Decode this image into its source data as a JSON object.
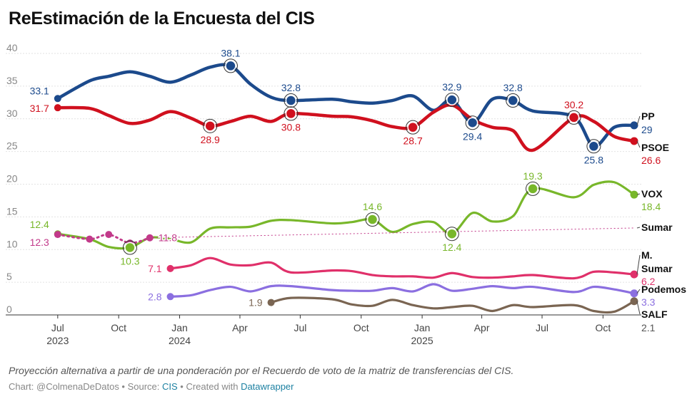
{
  "title": "ReEstimación de la Encuesta del CIS",
  "note": "Proyección alternativa a partir de una ponderación por el Recuerdo de voto de la matriz de transferencias del CIS.",
  "footer": {
    "credit_prefix": "Chart: @ColmenaDeDatos • Source: ",
    "source": "CIS",
    "created_prefix": " • Created with ",
    "tool": "Datawrapper"
  },
  "chart_data": {
    "type": "line",
    "title": "ReEstimación de la Encuesta del CIS",
    "xlabel": "",
    "ylabel": "",
    "ylim": [
      0,
      40
    ],
    "yticks": [
      0,
      5,
      10,
      15,
      20,
      25,
      30,
      35,
      40
    ],
    "grid": true,
    "x_range": [
      "2023-06-01",
      "2025-12-01"
    ],
    "xticks": [
      {
        "date": "2023-07-15",
        "label": "Jul",
        "year": "2023"
      },
      {
        "date": "2023-10-15",
        "label": "Oct",
        "year": ""
      },
      {
        "date": "2024-01-15",
        "label": "Jan",
        "year": "2024"
      },
      {
        "date": "2024-04-15",
        "label": "Apr",
        "year": ""
      },
      {
        "date": "2024-07-15",
        "label": "Jul",
        "year": ""
      },
      {
        "date": "2024-10-15",
        "label": "Oct",
        "year": ""
      },
      {
        "date": "2025-01-15",
        "label": "Jan",
        "year": "2025"
      },
      {
        "date": "2025-04-15",
        "label": "Apr",
        "year": ""
      },
      {
        "date": "2025-07-15",
        "label": "Jul",
        "year": ""
      },
      {
        "date": "2025-10-15",
        "label": "Oct",
        "year": ""
      }
    ],
    "series": [
      {
        "name": "PP",
        "color": "#1c4a8c",
        "end_value": "29",
        "points": [
          [
            "2023-07-15",
            33.1
          ],
          [
            "2023-09-01",
            35.8
          ],
          [
            "2023-09-30",
            36.5
          ],
          [
            "2023-11-01",
            37.2
          ],
          [
            "2023-12-01",
            36.5
          ],
          [
            "2024-01-01",
            35.6
          ],
          [
            "2024-02-01",
            36.7
          ],
          [
            "2024-03-01",
            37.9
          ],
          [
            "2024-04-01",
            38.1
          ],
          [
            "2024-05-01",
            35.3
          ],
          [
            "2024-06-01",
            33.3
          ],
          [
            "2024-07-01",
            32.8
          ],
          [
            "2024-09-01",
            33.0
          ],
          [
            "2024-10-01",
            32.6
          ],
          [
            "2024-11-01",
            32.4
          ],
          [
            "2024-12-01",
            32.8
          ],
          [
            "2025-01-01",
            33.5
          ],
          [
            "2025-02-01",
            31.3
          ],
          [
            "2025-03-01",
            32.9
          ],
          [
            "2025-04-01",
            29.4
          ],
          [
            "2025-05-01",
            33.0
          ],
          [
            "2025-06-01",
            32.8
          ],
          [
            "2025-07-01",
            31.2
          ],
          [
            "2025-09-01",
            30.3
          ],
          [
            "2025-10-01",
            25.8
          ],
          [
            "2025-11-01",
            28.7
          ],
          [
            "2025-12-01",
            29.0
          ]
        ]
      },
      {
        "name": "PSOE",
        "color": "#d0101e",
        "end_value": "26.6",
        "points": [
          [
            "2023-07-15",
            31.7
          ],
          [
            "2023-09-01",
            31.6
          ],
          [
            "2023-09-30",
            30.5
          ],
          [
            "2023-11-01",
            29.3
          ],
          [
            "2023-12-01",
            29.8
          ],
          [
            "2024-01-01",
            31.1
          ],
          [
            "2024-02-01",
            30.1
          ],
          [
            "2024-03-01",
            28.9
          ],
          [
            "2024-04-01",
            29.6
          ],
          [
            "2024-05-01",
            30.4
          ],
          [
            "2024-06-01",
            29.6
          ],
          [
            "2024-07-01",
            30.8
          ],
          [
            "2024-09-01",
            30.4
          ],
          [
            "2024-10-01",
            30.3
          ],
          [
            "2024-11-01",
            29.7
          ],
          [
            "2024-12-01",
            28.8
          ],
          [
            "2025-01-01",
            28.7
          ],
          [
            "2025-02-01",
            31.0
          ],
          [
            "2025-03-01",
            32.1
          ],
          [
            "2025-04-01",
            29.9
          ],
          [
            "2025-05-01",
            28.7
          ],
          [
            "2025-06-01",
            28.2
          ],
          [
            "2025-07-01",
            25.2
          ],
          [
            "2025-09-01",
            30.2
          ],
          [
            "2025-10-01",
            29.6
          ],
          [
            "2025-11-01",
            27.3
          ],
          [
            "2025-12-01",
            26.6
          ]
        ]
      },
      {
        "name": "VOX",
        "color": "#78b72a",
        "end_value": "18.4",
        "points": [
          [
            "2023-07-15",
            12.4
          ],
          [
            "2023-09-01",
            11.6
          ],
          [
            "2023-09-30",
            10.4
          ],
          [
            "2023-11-01",
            10.3
          ],
          [
            "2023-12-01",
            11.8
          ],
          [
            "2024-01-01",
            11.6
          ],
          [
            "2024-02-01",
            11.1
          ],
          [
            "2024-03-01",
            13.2
          ],
          [
            "2024-04-01",
            13.4
          ],
          [
            "2024-05-01",
            13.5
          ],
          [
            "2024-06-01",
            14.4
          ],
          [
            "2024-07-01",
            14.5
          ],
          [
            "2024-09-01",
            14.0
          ],
          [
            "2024-10-01",
            14.2
          ],
          [
            "2024-11-01",
            14.6
          ],
          [
            "2024-12-01",
            12.7
          ],
          [
            "2025-01-01",
            13.9
          ],
          [
            "2025-02-01",
            14.2
          ],
          [
            "2025-03-01",
            12.4
          ],
          [
            "2025-04-01",
            15.6
          ],
          [
            "2025-05-01",
            14.3
          ],
          [
            "2025-06-01",
            15.1
          ],
          [
            "2025-07-01",
            19.3
          ],
          [
            "2025-09-01",
            18.0
          ],
          [
            "2025-10-01",
            19.9
          ],
          [
            "2025-11-01",
            20.3
          ],
          [
            "2025-12-01",
            18.4
          ]
        ]
      },
      {
        "name": "Sumar",
        "color": "#c23a8a",
        "end_value": "",
        "points": [
          [
            "2023-07-15",
            12.3
          ],
          [
            "2023-09-01",
            11.6
          ],
          [
            "2023-09-30",
            12.3
          ],
          [
            "2023-11-01",
            11.0
          ],
          [
            "2023-12-01",
            11.8
          ],
          [
            "2025-12-01",
            13.3
          ]
        ]
      },
      {
        "name": "M. Sumar",
        "color": "#e0306a",
        "end_value": "6.2",
        "points": [
          [
            "2024-01-01",
            7.1
          ],
          [
            "2024-02-01",
            7.6
          ],
          [
            "2024-03-01",
            8.7
          ],
          [
            "2024-04-01",
            7.7
          ],
          [
            "2024-05-01",
            7.6
          ],
          [
            "2024-06-01",
            8.0
          ],
          [
            "2024-07-01",
            6.5
          ],
          [
            "2024-09-01",
            6.8
          ],
          [
            "2024-10-01",
            6.7
          ],
          [
            "2024-11-01",
            6.1
          ],
          [
            "2024-12-01",
            5.9
          ],
          [
            "2025-01-01",
            5.9
          ],
          [
            "2025-02-01",
            5.7
          ],
          [
            "2025-03-01",
            6.4
          ],
          [
            "2025-04-01",
            5.8
          ],
          [
            "2025-05-01",
            5.7
          ],
          [
            "2025-06-01",
            5.9
          ],
          [
            "2025-07-01",
            6.1
          ],
          [
            "2025-09-01",
            5.6
          ],
          [
            "2025-10-01",
            6.6
          ],
          [
            "2025-11-01",
            6.5
          ],
          [
            "2025-12-01",
            6.2
          ]
        ]
      },
      {
        "name": "Podemos",
        "color": "#8b6fe0",
        "end_value": "3.3",
        "points": [
          [
            "2024-01-01",
            2.8
          ],
          [
            "2024-02-01",
            3.0
          ],
          [
            "2024-03-01",
            3.8
          ],
          [
            "2024-04-01",
            4.3
          ],
          [
            "2024-05-01",
            3.6
          ],
          [
            "2024-06-01",
            4.4
          ],
          [
            "2024-07-01",
            4.4
          ],
          [
            "2024-09-01",
            3.8
          ],
          [
            "2024-10-01",
            3.7
          ],
          [
            "2024-11-01",
            3.7
          ],
          [
            "2024-12-01",
            4.1
          ],
          [
            "2025-01-01",
            3.6
          ],
          [
            "2025-02-01",
            4.7
          ],
          [
            "2025-03-01",
            3.7
          ],
          [
            "2025-04-01",
            4.0
          ],
          [
            "2025-05-01",
            4.4
          ],
          [
            "2025-06-01",
            4.1
          ],
          [
            "2025-07-01",
            4.3
          ],
          [
            "2025-09-01",
            3.5
          ],
          [
            "2025-10-01",
            4.3
          ],
          [
            "2025-11-01",
            3.9
          ],
          [
            "2025-12-01",
            3.3
          ]
        ]
      },
      {
        "name": "SALF",
        "color": "#7a6552",
        "end_value": "2.1",
        "points": [
          [
            "2024-06-01",
            1.9
          ],
          [
            "2024-07-01",
            2.6
          ],
          [
            "2024-09-01",
            2.4
          ],
          [
            "2024-10-01",
            1.6
          ],
          [
            "2024-11-01",
            1.4
          ],
          [
            "2024-12-01",
            2.3
          ],
          [
            "2025-01-01",
            1.5
          ],
          [
            "2025-02-01",
            1.0
          ],
          [
            "2025-03-01",
            1.2
          ],
          [
            "2025-04-01",
            1.4
          ],
          [
            "2025-05-01",
            0.6
          ],
          [
            "2025-06-01",
            1.5
          ],
          [
            "2025-07-01",
            1.2
          ],
          [
            "2025-09-01",
            1.5
          ],
          [
            "2025-10-01",
            0.6
          ],
          [
            "2025-11-01",
            0.5
          ],
          [
            "2025-12-01",
            2.1
          ]
        ]
      }
    ],
    "annotations": [
      {
        "series": "PP",
        "date": "2023-07-15",
        "text": "33.1",
        "ring": false
      },
      {
        "series": "PP",
        "date": "2024-04-01",
        "text": "38.1",
        "ring": true
      },
      {
        "series": "PP",
        "date": "2024-07-01",
        "text": "32.8",
        "ring": true
      },
      {
        "series": "PP",
        "date": "2025-03-01",
        "text": "32.9",
        "ring": true
      },
      {
        "series": "PP",
        "date": "2025-04-01",
        "text": "29.4",
        "ring": true
      },
      {
        "series": "PP",
        "date": "2025-06-01",
        "text": "32.8",
        "ring": true
      },
      {
        "series": "PP",
        "date": "2025-10-01",
        "text": "25.8",
        "ring": true
      },
      {
        "series": "PSOE",
        "date": "2023-07-15",
        "text": "31.7",
        "ring": false
      },
      {
        "series": "PSOE",
        "date": "2024-03-01",
        "text": "28.9",
        "ring": true
      },
      {
        "series": "PSOE",
        "date": "2024-07-01",
        "text": "30.8",
        "ring": true
      },
      {
        "series": "PSOE",
        "date": "2025-01-01",
        "text": "28.7",
        "ring": true
      },
      {
        "series": "PSOE",
        "date": "2025-09-01",
        "text": "30.2",
        "ring": true
      },
      {
        "series": "VOX",
        "date": "2023-07-15",
        "text": "12.4",
        "ring": false
      },
      {
        "series": "VOX",
        "date": "2023-11-01",
        "text": "10.3",
        "ring": true
      },
      {
        "series": "VOX",
        "date": "2024-11-01",
        "text": "14.6",
        "ring": true
      },
      {
        "series": "VOX",
        "date": "2025-03-01",
        "text": "12.4",
        "ring": true
      },
      {
        "series": "VOX",
        "date": "2025-07-01",
        "text": "19.3",
        "ring": true
      },
      {
        "series": "Sumar",
        "date": "2023-07-15",
        "text": "12.3",
        "ring": false
      },
      {
        "series": "Sumar",
        "date": "2023-12-01",
        "text": "11.8",
        "ring": false
      },
      {
        "series": "M. Sumar",
        "date": "2024-01-01",
        "text": "7.1",
        "ring": false
      },
      {
        "series": "Podemos",
        "date": "2024-01-01",
        "text": "2.8",
        "ring": false
      },
      {
        "series": "SALF",
        "date": "2024-06-01",
        "text": "1.9",
        "ring": false
      }
    ]
  }
}
